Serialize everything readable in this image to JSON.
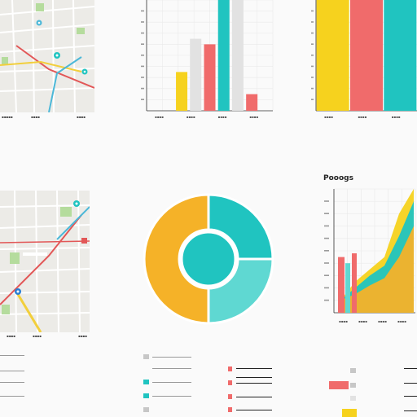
{
  "colors": {
    "teal": "#20c4c0",
    "teal_light": "#5fd8d2",
    "yellow": "#f6d21e",
    "orange": "#f5b228",
    "coral": "#f06b6b",
    "grey": "#e2e2e2",
    "road_red": "#e25757",
    "road_yellow": "#f2cf3c",
    "road_blue": "#4cb8d8",
    "park_green": "#b5dc9d"
  },
  "icons": [
    "map-pin-icon",
    "map-pin-icon",
    "map-pin-icon"
  ],
  "captions": {
    "top_left": [
      "▪▪▪▪▪",
      "▪▪▪▪",
      "▪▪▪▪"
    ],
    "top_mid": [
      "▪▪▪▪",
      "▪▪▪▪",
      "▪▪▪▪",
      "▪▪▪▪"
    ],
    "top_right": [
      "▪▪▪▪",
      "▪▪▪▪",
      "▪▪▪▪"
    ],
    "bottom_left": [
      "▪▪▪▪",
      "▪▪▪▪",
      "▪▪▪▪"
    ],
    "bottom_right": [
      "▪▪▪▪",
      "▪▪▪▪",
      "▪▪▪▪",
      "▪▪▪▪"
    ]
  },
  "right_chart": {
    "title": "Pooogs"
  },
  "chart_data": [
    {
      "type": "bar",
      "title": "",
      "categories": [
        "a",
        "b",
        "c",
        "d",
        "e",
        "f",
        "g",
        "h",
        "i"
      ],
      "series": [
        {
          "values": [
            0,
            0,
            35,
            0,
            0,
            0,
            0,
            0,
            0
          ]
        },
        {
          "values": [
            0,
            0,
            0,
            65,
            0,
            0,
            0,
            0,
            0
          ]
        },
        {
          "values": [
            0,
            0,
            0,
            0,
            60,
            0,
            0,
            15,
            0
          ]
        },
        {
          "values": [
            0,
            0,
            0,
            0,
            0,
            100,
            0,
            0,
            0
          ]
        },
        {
          "values": [
            0,
            0,
            0,
            0,
            0,
            0,
            100,
            0,
            0
          ]
        }
      ],
      "ylim": [
        0,
        100
      ],
      "grid": true
    },
    {
      "type": "bar",
      "title": "",
      "categories": [
        "a",
        "b",
        "c"
      ],
      "series": [
        {
          "values": [
            100,
            0,
            0
          ]
        },
        {
          "values": [
            0,
            100,
            0
          ]
        },
        {
          "values": [
            0,
            0,
            100
          ]
        }
      ],
      "ylim": [
        0,
        100
      ],
      "grid": true
    },
    {
      "type": "pie",
      "title": "",
      "values": [
        50,
        25,
        25
      ],
      "slice_colors": [
        "#f5b228",
        "#20c4c0",
        "#5fd8d2"
      ]
    },
    {
      "type": "area",
      "title": "Pooogs",
      "x": [
        1,
        2,
        3,
        4,
        5,
        6
      ],
      "series": [
        {
          "values": [
            10,
            25,
            35,
            45,
            80,
            100
          ]
        },
        {
          "values": [
            10,
            20,
            30,
            38,
            62,
            90
          ]
        },
        {
          "values": [
            10,
            15,
            22,
            28,
            45,
            70
          ]
        }
      ],
      "ylim": [
        0,
        100
      ],
      "grid": true
    }
  ]
}
